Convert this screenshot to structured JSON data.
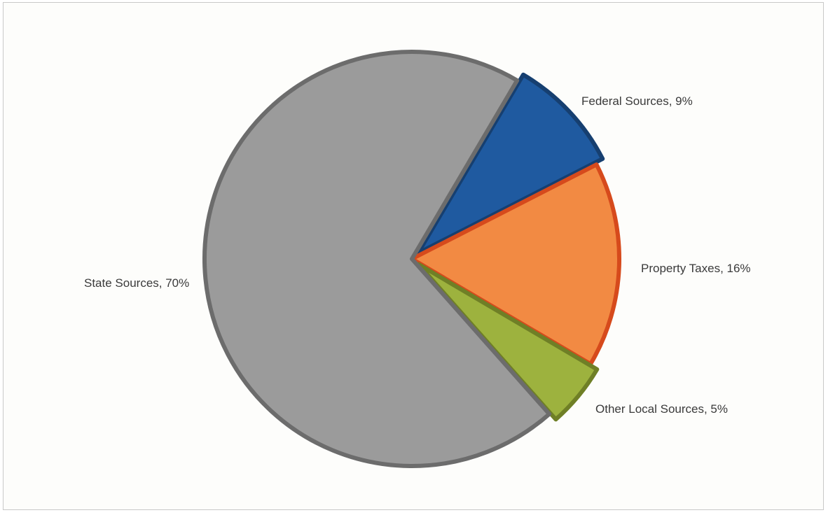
{
  "chart_data": {
    "type": "pie",
    "title": "",
    "slices": [
      {
        "label": "Federal Sources, 9%",
        "value": 9,
        "color": "#1f5aa0",
        "edge": "#163f70",
        "exploded": true
      },
      {
        "label": "Property Taxes, 16%",
        "value": 16,
        "color": "#f28a43",
        "edge": "#d64a1c",
        "exploded": false
      },
      {
        "label": "Other Local Sources, 5%",
        "value": 5,
        "color": "#9db23e",
        "edge": "#6f7f26",
        "exploded": true
      },
      {
        "label": "State Sources, 70%",
        "value": 70,
        "color": "#9b9b9b",
        "edge": "#6c6c6c",
        "exploded": false
      }
    ],
    "legend": "none",
    "labels_outside": true
  }
}
